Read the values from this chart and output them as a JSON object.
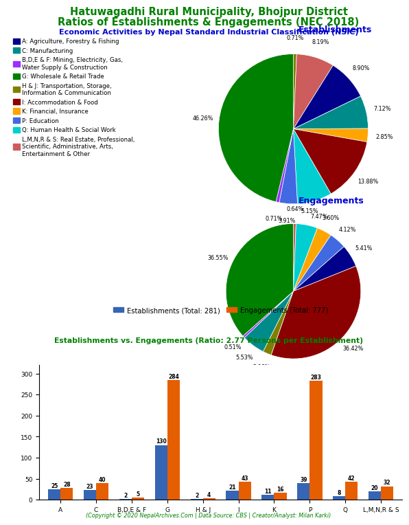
{
  "title_line1": "Hatuwagadhi Rural Municipality, Bhojpur District",
  "title_line2": "Ratios of Establishments & Engagements (NEC 2018)",
  "subtitle": "Economic Activities by Nepal Standard Industrial Classification (NSIC)",
  "title_color": "#008000",
  "subtitle_color": "#0000CD",
  "pie1_label": "Establishments",
  "pie2_label": "Engagements",
  "pie_label_color": "#0000CD",
  "legend_labels": [
    "A: Agriculture, Forestry & Fishing",
    "C: Manufacturing",
    "B,D,E & F: Mining, Electricity, Gas,\nWater Supply & Construction",
    "G: Wholesale & Retail Trade",
    "H & J: Transportation, Storage,\nInformation & Communication",
    "I: Accommodation & Food",
    "K: Financial, Insurance",
    "P: Education",
    "Q: Human Health & Social Work",
    "L,M,N,R & S: Real Estate, Professional,\nScientific, Administrative, Arts,\nEntertainment & Other"
  ],
  "colors": [
    "#00008B",
    "#008B8B",
    "#9B30FF",
    "#008000",
    "#808000",
    "#8B0000",
    "#FFA500",
    "#4169E1",
    "#00CED1",
    "#CD5C5C"
  ],
  "est_sizes": [
    0.71,
    8.19,
    8.9,
    7.12,
    2.85,
    13.88,
    7.47,
    3.91,
    0.71,
    46.26
  ],
  "est_colors_idx": [
    4,
    9,
    0,
    1,
    6,
    5,
    8,
    7,
    2,
    3
  ],
  "est_pcts": [
    "0.71%",
    "8.19%",
    "8.90%",
    "7.12%",
    "2.85%",
    "13.88%",
    "7.47%",
    "3.91%",
    "0.71%",
    "46.26%"
  ],
  "eng_sizes": [
    0.64,
    5.15,
    3.6,
    4.12,
    5.41,
    36.42,
    2.06,
    5.53,
    0.51,
    36.55
  ],
  "eng_colors_idx": [
    9,
    8,
    6,
    7,
    0,
    5,
    4,
    1,
    2,
    3
  ],
  "eng_pcts": [
    "0.64%",
    "5.15%",
    "3.60%",
    "4.12%",
    "5.41%",
    "36.42%",
    "2.06%",
    "5.53%",
    "0.51%",
    "36.55%"
  ],
  "bar_categories": [
    "A",
    "C",
    "B,D,E & F",
    "G",
    "H & J",
    "I",
    "K",
    "P",
    "Q",
    "L,M,N,R & S"
  ],
  "est_bar": [
    25,
    23,
    2,
    130,
    2,
    21,
    11,
    39,
    8,
    20
  ],
  "eng_bar": [
    28,
    40,
    5,
    284,
    4,
    43,
    16,
    283,
    42,
    32
  ],
  "est_total": 281,
  "eng_total": 777,
  "ratio": 2.77,
  "bar_title": "Establishments vs. Engagements (Ratio: 2.77 Persons per Establishment)",
  "bar_title_color": "#008000",
  "est_color": "#3665B3",
  "eng_color": "#E55E00",
  "footer": "(Copyright © 2020 NepalArchives.Com | Data Source: CBS | Creator/Analyst: Milan Karki)",
  "footer_color": "#008000"
}
